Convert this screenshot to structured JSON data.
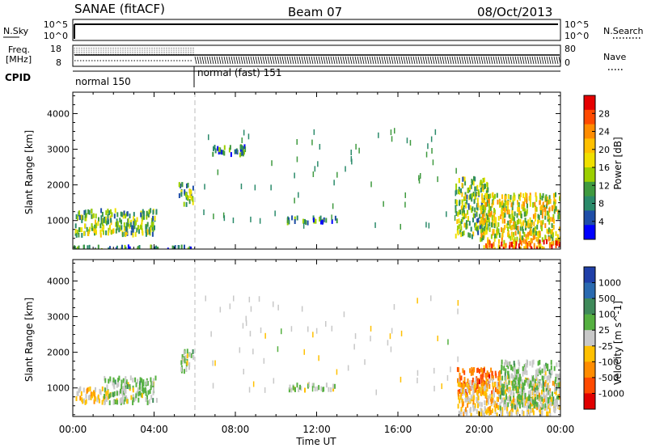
{
  "header": {
    "station": "SANAE (fitACF)",
    "beam": "Beam 07",
    "date": "08/Oct/2013"
  },
  "aux_labels": {
    "nsky": "N.Sky",
    "nsearch": "N.Search",
    "freq_line1": "Freq.",
    "freq_line2": "[MHz]",
    "nave": "Nave",
    "cpid": "CPID"
  },
  "aux_ticks": {
    "noise_left": [
      "10^5",
      "10^0"
    ],
    "noise_right": [
      "10^5",
      "10^0"
    ],
    "freq_left": [
      "18",
      "8"
    ],
    "nave_right": [
      "80",
      "0"
    ]
  },
  "cpid_segments": [
    "normal 150",
    "normal (fast) 151"
  ],
  "power_scale": {
    "title": "Power [dB]",
    "ticks": [
      "28",
      "24",
      "20",
      "16",
      "12",
      "8",
      "4"
    ],
    "colors": [
      "#e50000",
      "#ff4a00",
      "#ff8c00",
      "#ffc000",
      "#f0e000",
      "#9ccf00",
      "#3f9a3f",
      "#2a8a6a",
      "#1f4ea8",
      "#0000ff"
    ]
  },
  "velocity_scale": {
    "title": "Velocity [m s^-1]",
    "ticks": [
      "1000",
      "500",
      "100",
      "25",
      "-25",
      "-100",
      "-500",
      "-1000"
    ],
    "colors": [
      "#1f3fa8",
      "#2a6ab0",
      "#3f8a5a",
      "#55b040",
      "#c8c8c8",
      "#ffc000",
      "#ff8c00",
      "#ff4a00",
      "#e00000"
    ]
  },
  "chart_data": [
    {
      "type": "heatmap",
      "parameter": "Power",
      "ylabel": "Slant Range [km]",
      "xlabel": "Time UT",
      "x_ticks": [
        "00:00",
        "04:00",
        "08:00",
        "12:00",
        "16:00",
        "20:00",
        "00:00"
      ],
      "y_ticks": [
        1000,
        2000,
        3000,
        4000
      ],
      "xlim_hours": [
        0,
        24
      ],
      "ylim_km": [
        200,
        4600
      ],
      "clim_db": [
        0,
        30
      ],
      "regions": [
        {
          "t": [
            0.1,
            4.1
          ],
          "r": [
            650,
            1350
          ],
          "value": 12
        },
        {
          "t": [
            0.0,
            5.8
          ],
          "r": [
            220,
            330
          ],
          "value": 8
        },
        {
          "t": [
            5.2,
            5.9
          ],
          "r": [
            1500,
            2100
          ],
          "value": 12
        },
        {
          "t": [
            6.8,
            8.5
          ],
          "r": [
            2900,
            3150
          ],
          "value": 8
        },
        {
          "t": [
            10.5,
            13.0
          ],
          "r": [
            1000,
            1150
          ],
          "value": 8
        },
        {
          "t": [
            18.8,
            20.4
          ],
          "r": [
            600,
            2250
          ],
          "value": 12
        },
        {
          "t": [
            20.0,
            24.0
          ],
          "r": [
            450,
            1800
          ],
          "value": 16
        },
        {
          "t": [
            20.2,
            24.0
          ],
          "r": [
            220,
            480
          ],
          "value": 24
        }
      ]
    },
    {
      "type": "heatmap",
      "parameter": "Velocity",
      "ylabel": "Slant Range [km]",
      "xlabel": "Time UT",
      "x_ticks": [
        "00:00",
        "04:00",
        "08:00",
        "12:00",
        "16:00",
        "20:00",
        "00:00"
      ],
      "y_ticks": [
        1000,
        2000,
        3000,
        4000
      ],
      "xlim_hours": [
        0,
        24
      ],
      "ylim_km": [
        200,
        4600
      ],
      "clim_ms": [
        -1000,
        1000
      ],
      "regions": [
        {
          "t": [
            0.1,
            1.7
          ],
          "r": [
            650,
            1050
          ],
          "value": -200
        },
        {
          "t": [
            1.5,
            4.1
          ],
          "r": [
            650,
            1350
          ],
          "value": 100
        },
        {
          "t": [
            5.3,
            5.9
          ],
          "r": [
            1500,
            2100
          ],
          "value": 100
        },
        {
          "t": [
            10.5,
            13.0
          ],
          "r": [
            1000,
            1150
          ],
          "value": 0
        },
        {
          "t": [
            18.9,
            21.0
          ],
          "r": [
            900,
            1600
          ],
          "value": -600
        },
        {
          "t": [
            18.9,
            24.0
          ],
          "r": [
            300,
            1300
          ],
          "value": -150
        },
        {
          "t": [
            21.0,
            24.0
          ],
          "r": [
            500,
            1800
          ],
          "value": 120
        }
      ]
    }
  ]
}
